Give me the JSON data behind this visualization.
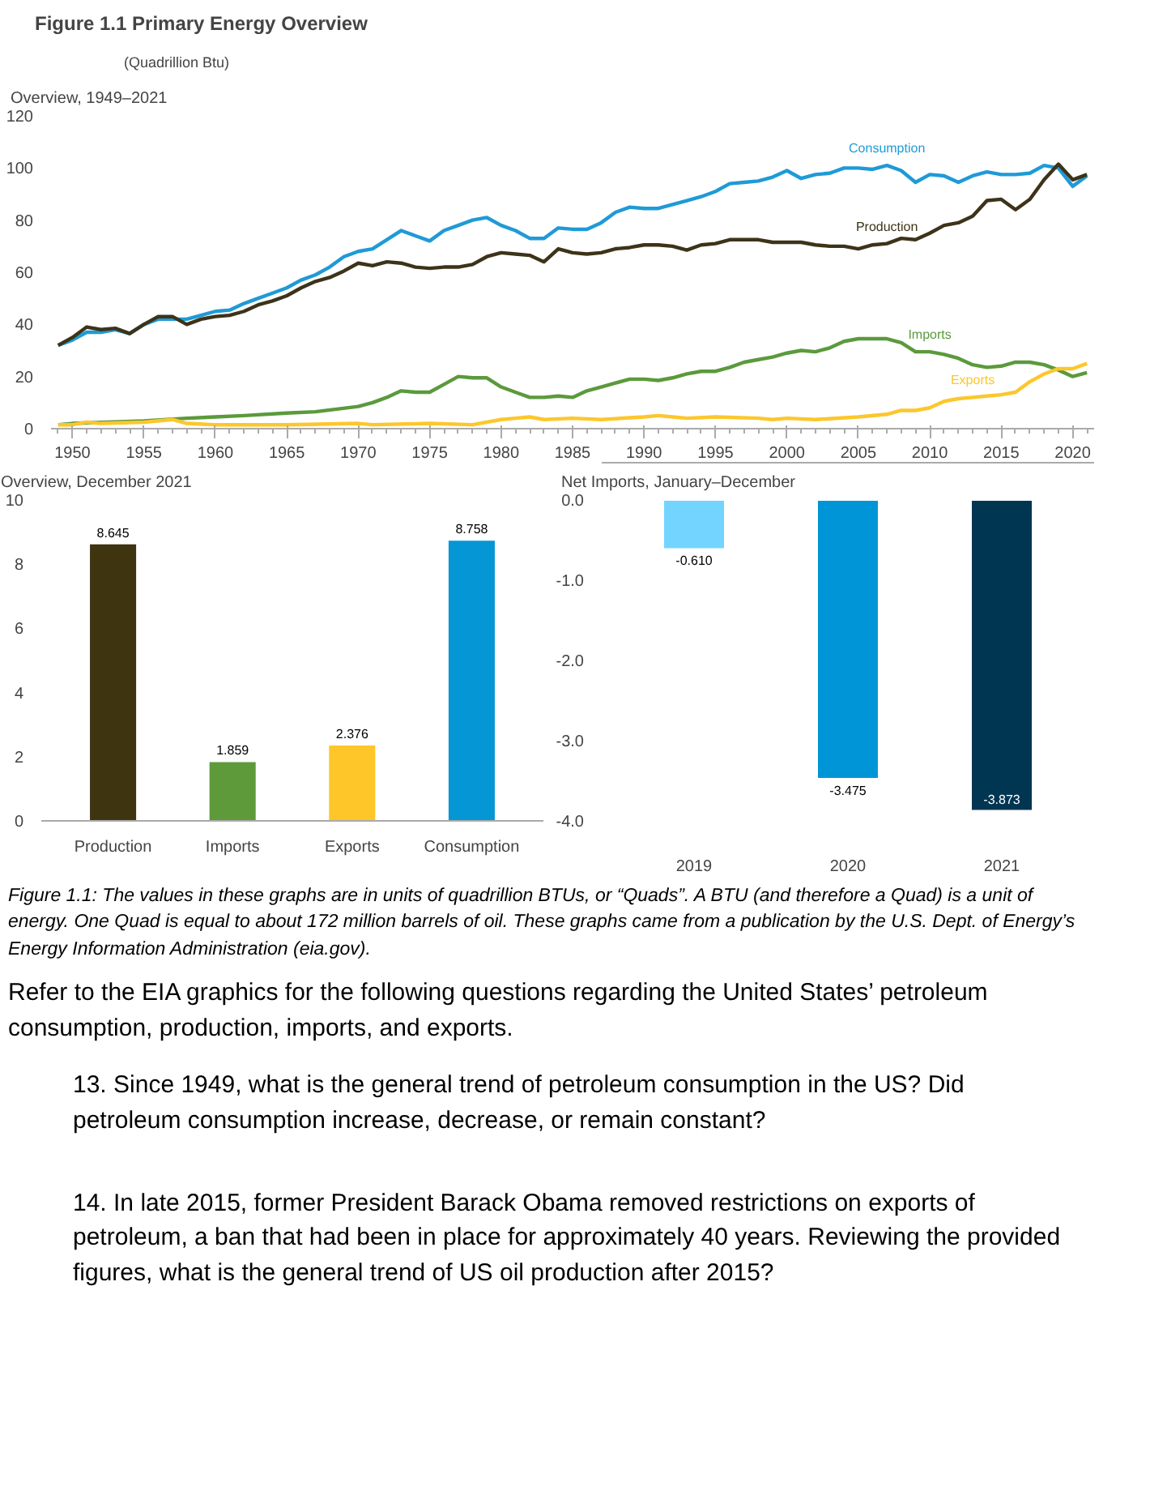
{
  "chart_data": [
    {
      "type": "line",
      "title": "Figure 1.1  Primary Energy Overview",
      "subtitle": "(Quadrillion Btu)",
      "ylabel": "Overview, 1949–2021",
      "legend": false,
      "grid": false,
      "marker": "none",
      "line_style": "solid",
      "xlim": [
        1948.5,
        2021.5
      ],
      "xticks": [
        1950,
        1955,
        1960,
        1965,
        1970,
        1975,
        1980,
        1985,
        1990,
        1995,
        2000,
        2005,
        2010,
        2015,
        2020
      ],
      "ylim": [
        0,
        120
      ],
      "yticks": [
        0,
        20,
        40,
        60,
        80,
        100,
        120
      ],
      "series": [
        {
          "name": "Consumption",
          "color": "#1f9ad6",
          "x": [
            1949,
            1950,
            1951,
            1952,
            1953,
            1954,
            1955,
            1956,
            1957,
            1958,
            1959,
            1960,
            1961,
            1962,
            1963,
            1964,
            1965,
            1966,
            1967,
            1968,
            1969,
            1970,
            1971,
            1972,
            1973,
            1974,
            1975,
            1976,
            1977,
            1978,
            1979,
            1980,
            1981,
            1982,
            1983,
            1984,
            1985,
            1986,
            1987,
            1988,
            1989,
            1990,
            1991,
            1992,
            1993,
            1994,
            1995,
            1996,
            1997,
            1998,
            1999,
            2000,
            2001,
            2002,
            2003,
            2004,
            2005,
            2006,
            2007,
            2008,
            2009,
            2010,
            2011,
            2012,
            2013,
            2014,
            2015,
            2016,
            2017,
            2018,
            2019,
            2020,
            2021
          ],
          "values": [
            32,
            34,
            37,
            37,
            38,
            36.5,
            40,
            42,
            42,
            42,
            43.5,
            45,
            45.5,
            48,
            50,
            52,
            54,
            57,
            59,
            62,
            66,
            68,
            69,
            72.5,
            76,
            74,
            72,
            76,
            78,
            80,
            81,
            78,
            76,
            73,
            73,
            77,
            76.5,
            76.5,
            79,
            83,
            85,
            84.5,
            84.5,
            86,
            87.5,
            89,
            91,
            94,
            94.5,
            95,
            96.5,
            99,
            96,
            97.5,
            98,
            100,
            100,
            99.5,
            101,
            99,
            94.5,
            97.5,
            97,
            94.5,
            97,
            98.5,
            97.5,
            97.5,
            98,
            101,
            100,
            93,
            97
          ]
        },
        {
          "name": "Production",
          "color": "#3d3319",
          "x": [
            1949,
            1950,
            1951,
            1952,
            1953,
            1954,
            1955,
            1956,
            1957,
            1958,
            1959,
            1960,
            1961,
            1962,
            1963,
            1964,
            1965,
            1966,
            1967,
            1968,
            1969,
            1970,
            1971,
            1972,
            1973,
            1974,
            1975,
            1976,
            1977,
            1978,
            1979,
            1980,
            1981,
            1982,
            1983,
            1984,
            1985,
            1986,
            1987,
            1988,
            1989,
            1990,
            1991,
            1992,
            1993,
            1994,
            1995,
            1996,
            1997,
            1998,
            1999,
            2000,
            2001,
            2002,
            2003,
            2004,
            2005,
            2006,
            2007,
            2008,
            2009,
            2010,
            2011,
            2012,
            2013,
            2014,
            2015,
            2016,
            2017,
            2018,
            2019,
            2020,
            2021
          ],
          "values": [
            32,
            35,
            39,
            38,
            38.5,
            36.5,
            40,
            43,
            43,
            40,
            42,
            43,
            43.5,
            45,
            47.5,
            49,
            51,
            54,
            56.5,
            58,
            60.5,
            63.5,
            62.5,
            64,
            63.5,
            62,
            61.5,
            62,
            62,
            63,
            66,
            67.5,
            67,
            66.5,
            64,
            69,
            67.5,
            67,
            67.5,
            69,
            69.5,
            70.5,
            70.5,
            70,
            68.5,
            70.5,
            71,
            72.5,
            72.5,
            72.5,
            71.5,
            71.5,
            71.5,
            70.5,
            70,
            70,
            69,
            70.5,
            71,
            73,
            72.5,
            75,
            78,
            79,
            81.5,
            87.5,
            88,
            84,
            88,
            95.5,
            101.5,
            95.5,
            97.5
          ]
        },
        {
          "name": "Imports",
          "color": "#5b9a3c",
          "x": [
            1949,
            1950,
            1955,
            1958,
            1960,
            1962,
            1965,
            1967,
            1970,
            1971,
            1972,
            1973,
            1974,
            1975,
            1976,
            1977,
            1978,
            1979,
            1980,
            1981,
            1982,
            1983,
            1984,
            1985,
            1986,
            1987,
            1988,
            1989,
            1990,
            1991,
            1992,
            1993,
            1994,
            1995,
            1996,
            1997,
            1998,
            1999,
            2000,
            2001,
            2002,
            2003,
            2004,
            2005,
            2006,
            2007,
            2008,
            2009,
            2010,
            2011,
            2012,
            2013,
            2014,
            2015,
            2016,
            2017,
            2018,
            2019,
            2020,
            2021
          ],
          "values": [
            1.5,
            2,
            3,
            4,
            4.5,
            5,
            6,
            6.5,
            8.5,
            10,
            12,
            14.5,
            14,
            14,
            17,
            20,
            19.5,
            19.5,
            16,
            14,
            12,
            12,
            12.5,
            12,
            14.5,
            16,
            17.5,
            19,
            19,
            18.5,
            19.5,
            21,
            22,
            22,
            23.5,
            25.5,
            26.5,
            27.5,
            29,
            30,
            29.5,
            31,
            33.5,
            34.5,
            34.5,
            34.5,
            33,
            29.5,
            29.5,
            28.5,
            27,
            24.5,
            23.5,
            24,
            25.5,
            25.5,
            24.5,
            22.5,
            20,
            21.5
          ]
        },
        {
          "name": "Exports",
          "color": "#fcc72c",
          "x": [
            1949,
            1950,
            1951,
            1952,
            1955,
            1957,
            1958,
            1960,
            1965,
            1970,
            1971,
            1975,
            1978,
            1980,
            1981,
            1982,
            1983,
            1985,
            1987,
            1990,
            1991,
            1992,
            1993,
            1995,
            1998,
            1999,
            2000,
            2002,
            2005,
            2007,
            2008,
            2009,
            2010,
            2011,
            2012,
            2013,
            2014,
            2015,
            2016,
            2017,
            2018,
            2019,
            2020,
            2021
          ],
          "values": [
            1.5,
            1.5,
            2.5,
            2,
            2.5,
            3.5,
            2,
            1.5,
            1.5,
            2,
            1.5,
            2,
            1.5,
            3.5,
            4,
            4.5,
            3.5,
            4,
            3.5,
            4.5,
            5,
            4.5,
            4,
            4.5,
            4,
            3.5,
            4,
            3.5,
            4.5,
            5.5,
            7,
            7,
            8,
            10.5,
            11.5,
            12,
            12.5,
            13,
            14,
            18,
            21,
            23,
            23,
            25
          ]
        }
      ]
    },
    {
      "type": "bar",
      "ylabel": "Overview, December 2021",
      "categories": [
        "Production",
        "Imports",
        "Exports",
        "Consumption"
      ],
      "values": [
        8.645,
        1.859,
        2.376,
        8.758
      ],
      "colors": [
        "#3f3410",
        "#5e9a3a",
        "#ffc629",
        "#0596d6"
      ],
      "data_labels": true,
      "grid": false,
      "ylim": [
        0,
        10
      ],
      "yticks": [
        0,
        2,
        4,
        6,
        8,
        10
      ]
    },
    {
      "type": "bar",
      "ylabel": "Net Imports, January–December",
      "categories": [
        "2019",
        "2020",
        "2021"
      ],
      "values": [
        -0.61,
        -3.475,
        -3.873
      ],
      "value_labels": [
        "-0.610",
        "-3.475",
        "-3.873"
      ],
      "colors": [
        "#73d4ff",
        "#0095d6",
        "#003652"
      ],
      "grid": false,
      "ylim": [
        -4,
        0
      ],
      "yticks": [
        {
          "value": 0,
          "label": "0.0"
        },
        {
          "value": -1,
          "label": "-1.0"
        },
        {
          "value": -2,
          "label": "-2.0"
        },
        {
          "value": -3,
          "label": "-3.0"
        },
        {
          "value": -4,
          "label": "-4.0"
        }
      ],
      "annotations": [
        "Figure 1.1: The values in these graphs are in units of quadrillion BTUs, or “Quads”. A BTU (and therefore a Quad) is a unit of energy. One Quad is equal to about 172 million barrels of oil. These graphs came from a publication by the U.S. Dept. of Energy’s Energy Information Administration (eia.gov).",
        "Refer to the EIA graphics for the following questions regarding the United States’ petroleum consumption, production, imports, and exports.",
        "13. Since 1949, what is the general trend of petroleum consumption in the US? Did petroleum consumption increase, decrease, or remain constant?",
        "14. In late 2015, former President Barack Obama removed restrictions on exports of petroleum, a ban that had been in place for approximately 40 years. Reviewing the provided figures, what is the general trend of US oil production after 2015?"
      ]
    }
  ]
}
